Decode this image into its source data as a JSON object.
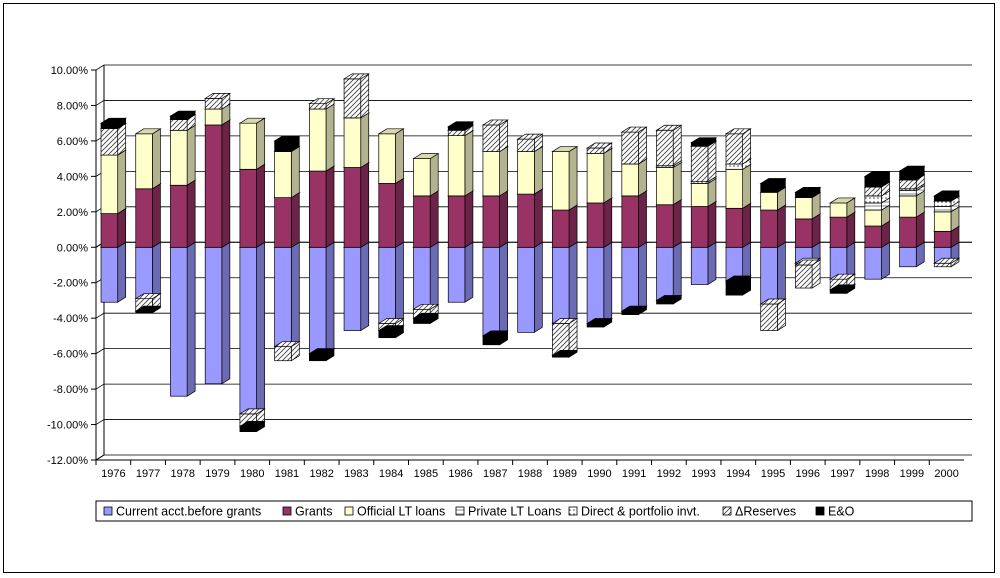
{
  "chart_data": {
    "type": "bar",
    "stacked": true,
    "style": "3d-stacked-column",
    "title": "",
    "xlabel": "",
    "ylabel": "",
    "ylim": [
      -12,
      10
    ],
    "y_step": 2,
    "y_tick_format": "percent_2dp",
    "grid": "horizontal",
    "legend_position": "bottom",
    "categories": [
      "1976",
      "1977",
      "1978",
      "1979",
      "1980",
      "1981",
      "1982",
      "1983",
      "1984",
      "1985",
      "1986",
      "1987",
      "1988",
      "1989",
      "1990",
      "1991",
      "1992",
      "1993",
      "1994",
      "1995",
      "1996",
      "1997",
      "1998",
      "1999",
      "2000"
    ],
    "series": [
      {
        "name": "Current acct.before grants",
        "fill": "#9999FF",
        "pattern": "solid",
        "values": [
          -3.1,
          -2.9,
          -8.4,
          -7.7,
          -9.4,
          -5.6,
          -6.0,
          -4.7,
          -4.3,
          -3.5,
          -3.1,
          -5.0,
          -4.8,
          -4.3,
          -4.3,
          -3.6,
          -3.0,
          -2.1,
          -1.9,
          -3.2,
          -0.9,
          -1.8,
          -1.8,
          -1.1,
          -0.9
        ]
      },
      {
        "name": "Grants",
        "fill": "#993366",
        "pattern": "solid",
        "values": [
          1.9,
          3.3,
          3.5,
          6.9,
          4.4,
          2.8,
          4.3,
          4.5,
          3.6,
          2.9,
          2.9,
          2.9,
          3.0,
          2.1,
          2.5,
          2.9,
          2.4,
          2.3,
          2.2,
          2.1,
          1.6,
          1.7,
          1.2,
          1.7,
          0.9
        ]
      },
      {
        "name": "Official LT loans",
        "fill": "#FFFFCC",
        "pattern": "solid",
        "values": [
          3.3,
          3.1,
          3.1,
          0.9,
          2.6,
          2.6,
          3.5,
          2.8,
          2.8,
          2.1,
          3.4,
          2.5,
          2.4,
          3.3,
          2.8,
          1.8,
          2.1,
          1.3,
          2.2,
          1.0,
          1.2,
          0.8,
          0.9,
          1.2,
          1.1
        ]
      },
      {
        "name": "Private LT Loans",
        "fill": "#FFFFFF",
        "pattern": "hlines",
        "values": [
          0,
          0,
          0,
          0,
          0,
          0,
          0,
          0,
          0,
          0,
          0,
          0,
          0,
          0,
          0,
          0,
          0,
          0,
          0,
          0,
          -0.1,
          0,
          0.4,
          0.3,
          0.3
        ]
      },
      {
        "name": "Direct & portfolio invt.",
        "fill": "#FFFFFF",
        "pattern": "dots",
        "values": [
          0,
          0,
          0,
          0,
          0,
          0,
          0,
          0,
          0,
          0,
          0,
          0,
          0,
          0,
          0,
          0,
          0.1,
          0.1,
          0.3,
          0,
          0,
          0,
          0.4,
          0.1,
          0.3
        ]
      },
      {
        "name": "ΔReserves",
        "fill": "#FFFFFF",
        "pattern": "diagonal",
        "values": [
          1.5,
          -0.7,
          0.6,
          0.6,
          -0.7,
          -0.8,
          0.3,
          2.2,
          -0.4,
          -0.5,
          0.3,
          1.5,
          0.7,
          -1.8,
          0.3,
          1.8,
          2.0,
          2.0,
          1.7,
          -1.5,
          -1.3,
          -0.6,
          0.5,
          0.5,
          -0.2
        ]
      },
      {
        "name": "E&O",
        "fill": "#000000",
        "pattern": "solid",
        "values": [
          0.3,
          -0.1,
          0.2,
          0,
          -0.3,
          0.6,
          -0.4,
          0,
          -0.4,
          -0.3,
          0.2,
          -0.5,
          0,
          -0.1,
          -0.2,
          -0.2,
          -0.2,
          0.2,
          -0.8,
          0.5,
          0.3,
          -0.2,
          0.6,
          0.5,
          0.3
        ]
      }
    ]
  }
}
